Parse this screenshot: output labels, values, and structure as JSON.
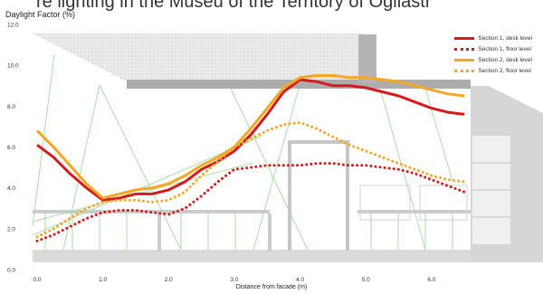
{
  "top_text": "re lighting in the Museu of the Territory of Ogliastr",
  "chart_data": {
    "type": "line",
    "title": "Daylight Factor (%)",
    "xlabel": "Distance from facade (m)",
    "ylabel": "",
    "xlim": [
      0.0,
      6.8
    ],
    "ylim": [
      0.0,
      12.0
    ],
    "x_ticks": [
      "0.0",
      "1.0",
      "2.0",
      "3.0",
      "4.0",
      "5.0",
      "6.0"
    ],
    "y_ticks": [
      "0.0",
      "2.0",
      "4.0",
      "6.0",
      "8.0",
      "10.0",
      "12.0"
    ],
    "legend_position": "top-right",
    "grid": false,
    "series": [
      {
        "name": "Section 1, desk level",
        "color": "#d7191c",
        "style": "solid",
        "x": [
          0.0,
          0.25,
          0.5,
          0.75,
          1.0,
          1.25,
          1.5,
          1.75,
          2.0,
          2.25,
          2.5,
          2.75,
          3.0,
          3.25,
          3.5,
          3.75,
          4.0,
          4.25,
          4.5,
          4.75,
          5.0,
          5.25,
          5.5,
          5.75,
          6.0,
          6.25,
          6.5
        ],
        "y": [
          6.1,
          5.5,
          4.7,
          4.0,
          3.4,
          3.5,
          3.7,
          3.7,
          3.9,
          4.3,
          4.9,
          5.3,
          5.8,
          6.6,
          7.6,
          8.7,
          9.3,
          9.2,
          9.0,
          9.0,
          8.9,
          8.7,
          8.5,
          8.2,
          7.9,
          7.7,
          7.6
        ]
      },
      {
        "name": "Section 1, floor level",
        "color": "#d7191c",
        "style": "dotted",
        "x": [
          0.0,
          0.25,
          0.5,
          0.75,
          1.0,
          1.25,
          1.5,
          1.75,
          2.0,
          2.25,
          2.5,
          2.75,
          3.0,
          3.25,
          3.5,
          3.75,
          4.0,
          4.25,
          4.5,
          4.75,
          5.0,
          5.25,
          5.5,
          5.75,
          6.0,
          6.25,
          6.5
        ],
        "y": [
          1.4,
          1.7,
          2.1,
          2.5,
          2.8,
          2.9,
          2.9,
          2.8,
          2.7,
          3.0,
          3.6,
          4.3,
          4.9,
          5.0,
          5.1,
          5.1,
          5.1,
          5.2,
          5.2,
          5.1,
          5.1,
          5.0,
          4.9,
          4.7,
          4.4,
          4.1,
          3.8
        ]
      },
      {
        "name": "Section 2, desk level",
        "color": "#f5a623",
        "style": "solid",
        "x": [
          0.0,
          0.25,
          0.5,
          0.75,
          1.0,
          1.25,
          1.5,
          1.75,
          2.0,
          2.25,
          2.5,
          2.75,
          3.0,
          3.25,
          3.5,
          3.75,
          4.0,
          4.25,
          4.5,
          4.75,
          5.0,
          5.25,
          5.5,
          5.75,
          6.0,
          6.25,
          6.5
        ],
        "y": [
          6.8,
          6.0,
          5.1,
          4.2,
          3.5,
          3.7,
          3.9,
          4.0,
          4.2,
          4.6,
          5.1,
          5.5,
          6.0,
          6.9,
          7.9,
          8.9,
          9.4,
          9.5,
          9.5,
          9.4,
          9.4,
          9.3,
          9.2,
          9.0,
          8.8,
          8.6,
          8.5
        ]
      },
      {
        "name": "Section 2, floor level",
        "color": "#f5a623",
        "style": "dotted",
        "x": [
          0.0,
          0.25,
          0.5,
          0.75,
          1.0,
          1.25,
          1.5,
          1.75,
          2.0,
          2.25,
          2.5,
          2.75,
          3.0,
          3.25,
          3.5,
          3.75,
          4.0,
          4.25,
          4.5,
          4.75,
          5.0,
          5.25,
          5.5,
          5.75,
          6.0,
          6.25,
          6.5
        ],
        "y": [
          1.6,
          2.0,
          2.5,
          3.0,
          3.3,
          3.4,
          3.4,
          3.3,
          3.4,
          3.8,
          4.6,
          5.3,
          6.0,
          6.4,
          6.8,
          7.1,
          7.2,
          6.9,
          6.5,
          6.1,
          5.8,
          5.5,
          5.2,
          4.9,
          4.6,
          4.4,
          4.3
        ]
      }
    ]
  }
}
